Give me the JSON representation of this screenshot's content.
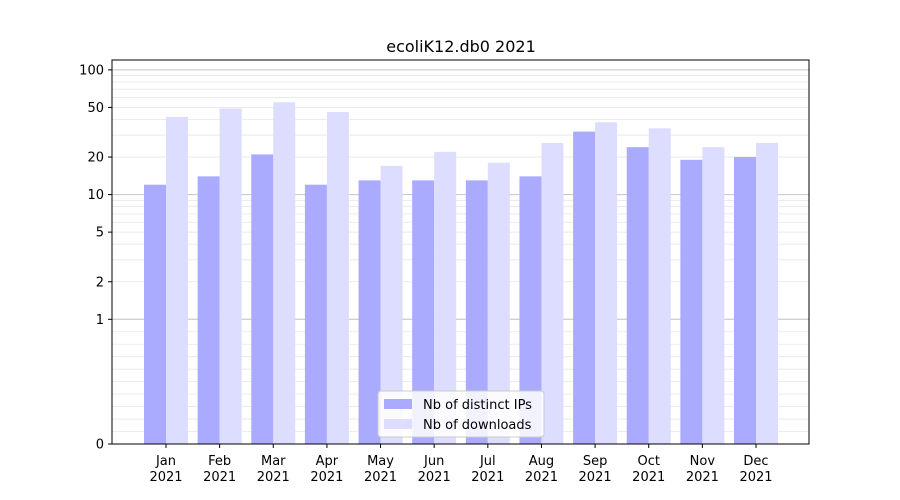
{
  "chart_data": {
    "type": "bar",
    "title": "ecoliK12.db0 2021",
    "xlabel": "",
    "ylabel": "",
    "yscale": "symlog",
    "ylim": [
      0,
      120
    ],
    "yticks": [
      {
        "value": 0,
        "label": "0"
      },
      {
        "value": 1,
        "label": "1"
      },
      {
        "value": 2,
        "label": "2"
      },
      {
        "value": 5,
        "label": "5"
      },
      {
        "value": 10,
        "label": "10"
      },
      {
        "value": 20,
        "label": "20"
      },
      {
        "value": 50,
        "label": "50"
      },
      {
        "value": 100,
        "label": "100"
      }
    ],
    "grid": true,
    "legend_position": "bottom-center",
    "categories": [
      "Jan\n2021",
      "Feb\n2021",
      "Mar\n2021",
      "Apr\n2021",
      "May\n2021",
      "Jun\n2021",
      "Jul\n2021",
      "Aug\n2021",
      "Sep\n2021",
      "Oct\n2021",
      "Nov\n2021",
      "Dec\n2021"
    ],
    "series": [
      {
        "name": "Nb of distinct IPs",
        "color": "#aaaaff",
        "values": [
          12,
          14,
          21,
          12,
          13,
          13,
          13,
          14,
          32,
          24,
          19,
          20
        ]
      },
      {
        "name": "Nb of downloads",
        "color": "#ddddff",
        "values": [
          42,
          49,
          55,
          46,
          17,
          22,
          18,
          26,
          38,
          34,
          24,
          26
        ]
      }
    ]
  }
}
